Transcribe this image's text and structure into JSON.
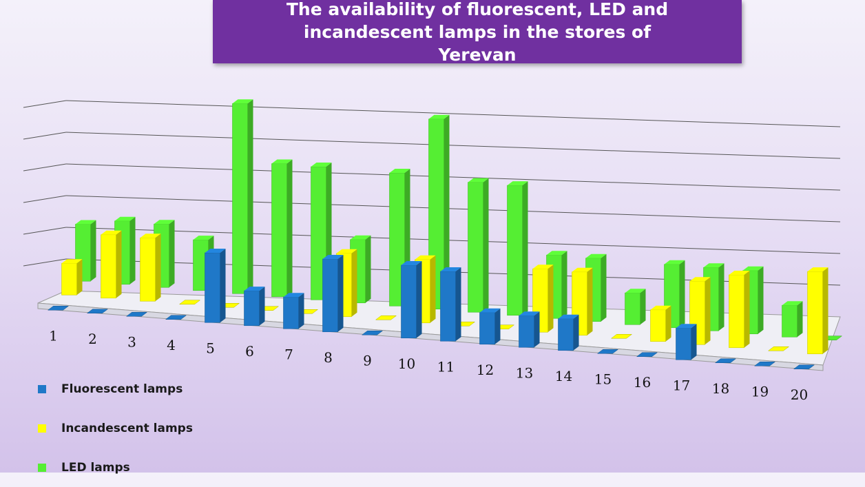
{
  "title": "The availability of fluorescent, LED and incandescent lamps in the stores of Yerevan",
  "legend": [
    {
      "label": "Fluorescent lamps",
      "color": "#1f78c8"
    },
    {
      "label": "Incandescent lamps",
      "color": "#ffff00"
    },
    {
      "label": "LED lamps",
      "color": "#55ee33"
    }
  ],
  "chart_data": {
    "type": "bar",
    "style": "3d-clustered",
    "categories": [
      "1",
      "2",
      "3",
      "4",
      "5",
      "6",
      "7",
      "8",
      "9",
      "10",
      "11",
      "12",
      "13",
      "14",
      "15",
      "16",
      "17",
      "18",
      "19",
      "20"
    ],
    "series": [
      {
        "name": "Fluorescent lamps",
        "color": "#1f78c8",
        "values": [
          0,
          0,
          0,
          0,
          2.2,
          1.1,
          1.0,
          2.3,
          0,
          2.3,
          2.2,
          1.0,
          1.0,
          1.0,
          0,
          0,
          1.0,
          0,
          0,
          0
        ]
      },
      {
        "name": "Incandescent lamps",
        "color": "#ffff00",
        "values": [
          1.0,
          2.0,
          2.0,
          0,
          0,
          0,
          0,
          2.0,
          0,
          2.0,
          0,
          0,
          2.0,
          2.0,
          0,
          1.0,
          2.0,
          2.3,
          0,
          2.6
        ]
      },
      {
        "name": "LED lamps",
        "color": "#55ee33",
        "values": [
          1.8,
          2.0,
          2.0,
          1.6,
          6.0,
          4.2,
          4.2,
          2.0,
          4.2,
          6.0,
          4.1,
          4.1,
          2.0,
          2.0,
          1.0,
          2.0,
          2.0,
          2.0,
          1.0,
          0
        ]
      }
    ],
    "ylim": [
      0,
      6
    ],
    "grid": true,
    "legend_position": "bottom-left"
  }
}
